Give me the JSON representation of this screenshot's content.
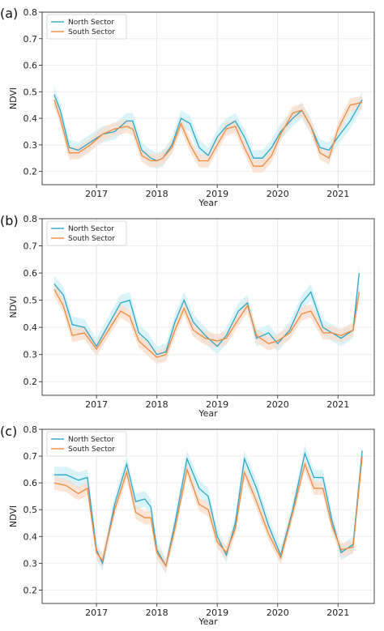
{
  "colors": {
    "north": "#2aa7c9",
    "south": "#f08a3c",
    "north_band": "#cdeff7",
    "south_band": "#fbdcc9"
  },
  "chart_data": [
    {
      "type": "line",
      "panel_label": "(a)",
      "xlabel": "Year",
      "ylabel": "NDVI",
      "xlim": [
        2016.1,
        2021.6
      ],
      "ylim": [
        0.15,
        0.8
      ],
      "yticks": [
        0.2,
        0.3,
        0.4,
        0.5,
        0.6,
        0.7,
        0.8
      ],
      "xticks": [
        2017,
        2018,
        2019,
        2020,
        2021
      ],
      "legend": "top-left",
      "grid": true,
      "x": [
        2016.3,
        2016.4,
        2016.55,
        2016.7,
        2016.9,
        2017.1,
        2017.3,
        2017.5,
        2017.6,
        2017.75,
        2017.9,
        2018.0,
        2018.1,
        2018.25,
        2018.4,
        2018.55,
        2018.7,
        2018.85,
        2019.0,
        2019.15,
        2019.3,
        2019.45,
        2019.6,
        2019.75,
        2019.9,
        2020.05,
        2020.25,
        2020.4,
        2020.55,
        2020.7,
        2020.85,
        2021.0,
        2021.2,
        2021.4
      ],
      "series": [
        {
          "name": "North Sector",
          "values": [
            0.49,
            0.43,
            0.29,
            0.28,
            0.31,
            0.34,
            0.35,
            0.39,
            0.39,
            0.28,
            0.25,
            0.24,
            0.25,
            0.3,
            0.4,
            0.38,
            0.29,
            0.26,
            0.33,
            0.37,
            0.39,
            0.33,
            0.25,
            0.25,
            0.29,
            0.35,
            0.4,
            0.43,
            0.37,
            0.29,
            0.28,
            0.33,
            0.39,
            0.47
          ]
        },
        {
          "name": "South Sector",
          "values": [
            0.47,
            0.4,
            0.27,
            0.27,
            0.3,
            0.34,
            0.36,
            0.37,
            0.36,
            0.26,
            0.24,
            0.24,
            0.25,
            0.29,
            0.38,
            0.3,
            0.24,
            0.24,
            0.3,
            0.36,
            0.37,
            0.29,
            0.22,
            0.22,
            0.26,
            0.34,
            0.42,
            0.43,
            0.37,
            0.27,
            0.25,
            0.36,
            0.45,
            0.46
          ]
        }
      ]
    },
    {
      "type": "line",
      "panel_label": "(b)",
      "xlabel": "Year",
      "ylabel": "NDVI",
      "xlim": [
        2016.1,
        2021.6
      ],
      "ylim": [
        0.15,
        0.8
      ],
      "yticks": [
        0.2,
        0.3,
        0.4,
        0.5,
        0.6,
        0.7,
        0.8
      ],
      "xticks": [
        2017,
        2018,
        2019,
        2020,
        2021
      ],
      "legend": "top-left",
      "grid": true,
      "x": [
        2016.3,
        2016.45,
        2016.6,
        2016.8,
        2017.0,
        2017.2,
        2017.4,
        2017.55,
        2017.7,
        2017.85,
        2018.0,
        2018.15,
        2018.3,
        2018.45,
        2018.6,
        2018.8,
        2019.0,
        2019.15,
        2019.35,
        2019.5,
        2019.65,
        2019.85,
        2020.0,
        2020.2,
        2020.4,
        2020.55,
        2020.75,
        2020.9,
        2021.05,
        2021.25,
        2021.35
      ],
      "series": [
        {
          "name": "North Sector",
          "values": [
            0.56,
            0.52,
            0.41,
            0.4,
            0.33,
            0.41,
            0.49,
            0.5,
            0.38,
            0.35,
            0.3,
            0.31,
            0.42,
            0.5,
            0.42,
            0.37,
            0.33,
            0.37,
            0.46,
            0.49,
            0.36,
            0.38,
            0.34,
            0.39,
            0.49,
            0.53,
            0.4,
            0.38,
            0.36,
            0.39,
            0.6
          ]
        },
        {
          "name": "South Sector",
          "values": [
            0.54,
            0.48,
            0.37,
            0.38,
            0.32,
            0.39,
            0.46,
            0.44,
            0.35,
            0.32,
            0.29,
            0.3,
            0.39,
            0.47,
            0.39,
            0.36,
            0.35,
            0.36,
            0.43,
            0.48,
            0.37,
            0.34,
            0.35,
            0.38,
            0.45,
            0.46,
            0.38,
            0.38,
            0.37,
            0.39,
            0.53
          ]
        }
      ]
    },
    {
      "type": "line",
      "panel_label": "(c)",
      "xlabel": "Year",
      "ylabel": "NDVI",
      "xlim": [
        2016.1,
        2021.6
      ],
      "ylim": [
        0.15,
        0.8
      ],
      "yticks": [
        0.2,
        0.3,
        0.4,
        0.5,
        0.6,
        0.7,
        0.8
      ],
      "xticks": [
        2017,
        2018,
        2019,
        2020,
        2021
      ],
      "legend": "top-left",
      "grid": true,
      "x": [
        2016.3,
        2016.5,
        2016.7,
        2016.85,
        2017.0,
        2017.1,
        2017.3,
        2017.5,
        2017.65,
        2017.8,
        2017.9,
        2018.0,
        2018.15,
        2018.3,
        2018.5,
        2018.7,
        2018.85,
        2019.0,
        2019.15,
        2019.3,
        2019.45,
        2019.65,
        2019.85,
        2020.05,
        2020.25,
        2020.45,
        2020.6,
        2020.75,
        2020.9,
        2021.05,
        2021.25,
        2021.4
      ],
      "series": [
        {
          "name": "North Sector",
          "values": [
            0.63,
            0.63,
            0.61,
            0.62,
            0.35,
            0.3,
            0.52,
            0.67,
            0.53,
            0.54,
            0.51,
            0.35,
            0.29,
            0.45,
            0.69,
            0.58,
            0.55,
            0.4,
            0.33,
            0.45,
            0.69,
            0.58,
            0.44,
            0.33,
            0.5,
            0.71,
            0.62,
            0.62,
            0.46,
            0.34,
            0.37,
            0.72
          ]
        },
        {
          "name": "South Sector",
          "values": [
            0.6,
            0.59,
            0.56,
            0.58,
            0.34,
            0.31,
            0.5,
            0.64,
            0.49,
            0.47,
            0.47,
            0.34,
            0.29,
            0.43,
            0.65,
            0.52,
            0.5,
            0.38,
            0.34,
            0.43,
            0.64,
            0.53,
            0.41,
            0.32,
            0.49,
            0.67,
            0.58,
            0.58,
            0.44,
            0.35,
            0.36,
            0.7
          ]
        }
      ]
    }
  ]
}
